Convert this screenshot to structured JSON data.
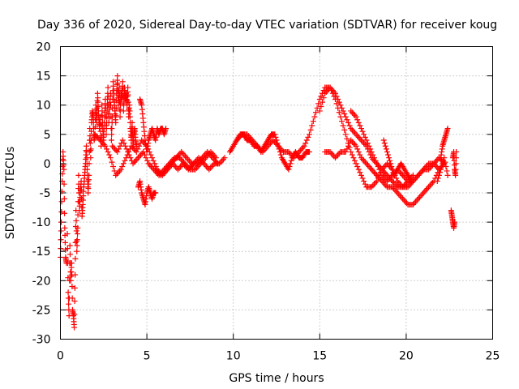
{
  "chart_data": {
    "type": "scatter",
    "title": "Day 336 of 2020, Sidereal Day-to-day VTEC variation (SDTVAR) for receiver koug",
    "xlabel": "GPS time / hours",
    "ylabel": "SDTVAR / TECUs",
    "xlim": [
      0,
      25
    ],
    "ylim": [
      -30,
      20
    ],
    "xticks": [
      0,
      5,
      10,
      15,
      20,
      25
    ],
    "yticks": [
      -30,
      -25,
      -20,
      -15,
      -10,
      -5,
      0,
      5,
      10,
      15,
      20
    ],
    "grid": true,
    "marker": "+",
    "color": "#ff0000",
    "series": [
      {
        "name": "SDTVAR",
        "segments": [
          {
            "x": [
              0.0,
              0.05,
              0.1,
              0.15,
              0.2,
              0.25,
              0.3,
              0.35
            ],
            "y": [
              -16,
              -10,
              -3,
              2,
              -1,
              -11,
              -16,
              -17
            ]
          },
          {
            "x": [
              0.4,
              0.45,
              0.5,
              0.55,
              0.6,
              0.65,
              0.7,
              0.75,
              0.8,
              0.85,
              0.9,
              0.95,
              1.0,
              1.05,
              1.1,
              1.15,
              1.2,
              1.25,
              1.3,
              1.35,
              1.4,
              1.45,
              1.5,
              1.55,
              1.6,
              1.65,
              1.7,
              1.75,
              1.8,
              1.85,
              1.9,
              1.95,
              2.0,
              2.05,
              2.1,
              2.15,
              2.2,
              2.25,
              2.3,
              2.35,
              2.4,
              2.45,
              2.5,
              2.55,
              2.6,
              2.65,
              2.7,
              2.75,
              2.8,
              2.85,
              2.9,
              2.95,
              3.0,
              3.05,
              3.1,
              3.15,
              3.2,
              3.25,
              3.3,
              3.35,
              3.4,
              3.45,
              3.5,
              3.55,
              3.6,
              3.65,
              3.7,
              3.75,
              3.8,
              3.85,
              3.9,
              3.95,
              4.0,
              4.05,
              4.1,
              4.15,
              4.2,
              4.25,
              4.3,
              4.35,
              4.4
            ],
            "y": [
              -12,
              -22,
              -26,
              -14,
              -20,
              -17,
              -25,
              -26,
              -28,
              -19,
              -8,
              -15,
              -11,
              -2,
              -8,
              -5,
              -3,
              -9,
              -7,
              -4,
              -2,
              0,
              3,
              -1,
              -5,
              -2,
              6,
              1,
              7,
              9,
              8,
              4,
              5,
              10,
              7,
              12,
              9,
              6,
              8,
              3,
              10,
              6,
              4,
              8,
              11,
              5,
              9,
              13,
              7,
              10,
              12,
              4,
              8,
              14,
              11,
              9,
              7,
              12,
              15,
              10,
              13,
              8,
              12,
              11,
              14,
              9,
              13,
              11,
              12,
              10,
              13,
              8,
              10,
              6,
              4,
              7,
              3,
              5,
              6,
              4,
              3
            ]
          },
          {
            "x": [
              4.5,
              4.6,
              4.7,
              4.8,
              4.9,
              5.0,
              5.1,
              5.2,
              5.3,
              5.4,
              5.5
            ],
            "y": [
              -4,
              -3,
              -5,
              -6,
              -7,
              -5,
              -4,
              -5,
              -6,
              -5,
              -5
            ]
          },
          {
            "x": [
              4.6,
              4.7,
              4.8,
              4.9,
              5.0,
              5.1,
              5.2,
              5.3,
              5.4,
              5.5,
              5.6,
              5.7,
              5.8,
              5.9,
              6.0,
              6.1
            ],
            "y": [
              11,
              10,
              7,
              4,
              2,
              4,
              5,
              6,
              5,
              4,
              6,
              5,
              6,
              6,
              5,
              6
            ]
          },
          {
            "x": [
              2.0,
              2.3,
              2.6,
              2.9,
              3.2,
              3.5,
              3.8,
              4.1,
              4.4,
              4.7,
              5.0,
              5.3,
              5.6,
              5.9,
              6.2,
              6.5,
              6.8,
              7.1,
              7.4,
              7.7,
              8.0,
              8.3,
              8.6,
              8.9,
              9.2,
              9.5
            ],
            "y": [
              5,
              4,
              3,
              1,
              -2,
              -1,
              1,
              3,
              2,
              4,
              3,
              1,
              -1,
              -2,
              -1,
              0,
              -1,
              0,
              -1,
              0,
              1,
              0,
              -1,
              0,
              0,
              1
            ]
          },
          {
            "x": [
              3.0,
              3.3,
              3.6,
              3.9,
              4.2,
              4.5,
              4.8,
              5.1,
              5.4,
              5.7,
              6.0,
              6.3,
              6.6,
              6.9,
              7.2,
              7.5,
              7.8,
              8.1,
              8.4,
              8.7,
              9.0
            ],
            "y": [
              3,
              2,
              4,
              2,
              0,
              1,
              2,
              0,
              -1,
              -2,
              -1,
              0,
              1,
              1,
              0,
              -1,
              -1,
              0,
              1,
              2,
              1
            ]
          },
          {
            "x": [
              5.5,
              5.8,
              6.1,
              6.4,
              6.7,
              7.0,
              7.3,
              7.6,
              7.9,
              8.2,
              8.5,
              8.8,
              9.1
            ],
            "y": [
              -1,
              -2,
              -1,
              0,
              1,
              2,
              1,
              0,
              0,
              1,
              2,
              1,
              0
            ]
          },
          {
            "x": [
              9.8,
              10.0,
              10.2,
              10.4,
              10.6,
              10.8,
              11.0,
              11.2,
              11.4,
              11.6,
              11.8,
              12.0,
              12.2,
              12.4,
              12.6,
              12.8,
              13.0,
              13.2,
              13.4,
              13.6,
              13.8,
              14.0,
              14.2,
              14.4
            ],
            "y": [
              2,
              3,
              4,
              5,
              5,
              4,
              4,
              3,
              3,
              2,
              3,
              4,
              5,
              5,
              3,
              1,
              0,
              -1,
              1,
              2,
              1,
              1,
              2,
              2
            ]
          },
          {
            "x": [
              10.2,
              10.5,
              10.8,
              11.1,
              11.4,
              11.7,
              12.0,
              12.3,
              12.6,
              12.9,
              13.2,
              13.5,
              13.8,
              14.1,
              14.4,
              14.7,
              15.0,
              15.3,
              15.6,
              15.9,
              16.2,
              16.5,
              16.8,
              17.1,
              17.4,
              17.7,
              18.0,
              18.3,
              18.6,
              18.9,
              19.2,
              19.5,
              19.8,
              20.1,
              20.4
            ],
            "y": [
              4,
              5,
              5,
              4,
              3,
              2,
              3,
              4,
              3,
              2,
              2,
              1,
              2,
              3,
              5,
              8,
              11,
              13,
              13,
              11,
              8,
              5,
              2,
              0,
              -2,
              -4,
              -4,
              -3,
              -1,
              0,
              -1,
              -3,
              -4,
              -3,
              -2
            ]
          },
          {
            "x": [
              15.0,
              15.3,
              15.6,
              15.9,
              16.2,
              16.5,
              16.8,
              17.1,
              17.4,
              17.7,
              18.0,
              18.3,
              18.6,
              18.9,
              19.2,
              19.5,
              19.8,
              20.1,
              20.4,
              20.7,
              21.0,
              21.3,
              21.6,
              21.9
            ],
            "y": [
              9,
              12,
              13,
              12,
              10,
              8,
              6,
              5,
              4,
              3,
              1,
              0,
              -1,
              -2,
              -3,
              -4,
              -4,
              -4,
              -3,
              -2,
              -1,
              0,
              0,
              -1
            ]
          },
          {
            "x": [
              15.3,
              15.6,
              15.9,
              16.2,
              16.5,
              16.8,
              17.1,
              17.4,
              17.7,
              18.0,
              18.3,
              18.6,
              18.9,
              19.2,
              19.5,
              19.8,
              20.1,
              20.4,
              20.7,
              21.0,
              21.3,
              21.6,
              21.9,
              22.2
            ],
            "y": [
              2,
              2,
              1,
              2,
              2,
              4,
              3,
              1,
              0,
              -1,
              -2,
              -3,
              -4,
              -4,
              -5,
              -6,
              -7,
              -7,
              -6,
              -5,
              -4,
              -3,
              -1,
              0
            ]
          },
          {
            "x": [
              16.8,
              17.1,
              17.4,
              17.7,
              18.0,
              18.3,
              18.6,
              18.9,
              19.2,
              19.5,
              19.8,
              20.1,
              20.4,
              20.7,
              21.0,
              21.3,
              21.6,
              21.9,
              22.2
            ],
            "y": [
              9,
              8,
              6,
              4,
              2,
              0,
              -2,
              -3,
              -2,
              -1,
              -2,
              -3,
              -3,
              -2,
              -1,
              -1,
              0,
              1,
              0
            ]
          },
          {
            "x": [
              18.7,
              18.9,
              19.1,
              19.3,
              19.5,
              19.7,
              19.9,
              20.1,
              20.3
            ],
            "y": [
              4,
              2,
              0,
              -2,
              -1,
              0,
              -1,
              -2,
              -3
            ]
          },
          {
            "x": [
              21.8,
              22.0,
              22.2,
              22.4
            ],
            "y": [
              -3,
              -1,
              1,
              -2
            ]
          },
          {
            "x": [
              22.0,
              22.1,
              22.2,
              22.3,
              22.4
            ],
            "y": [
              1,
              3,
              4,
              5,
              6
            ]
          },
          {
            "x": [
              22.6,
              22.65,
              22.7,
              22.75,
              22.8
            ],
            "y": [
              -8,
              -9,
              -10,
              -11,
              -10
            ]
          },
          {
            "x": [
              22.7,
              22.75,
              22.8,
              22.85,
              22.9
            ],
            "y": [
              1,
              2,
              -1,
              -2,
              2
            ]
          }
        ]
      }
    ]
  }
}
